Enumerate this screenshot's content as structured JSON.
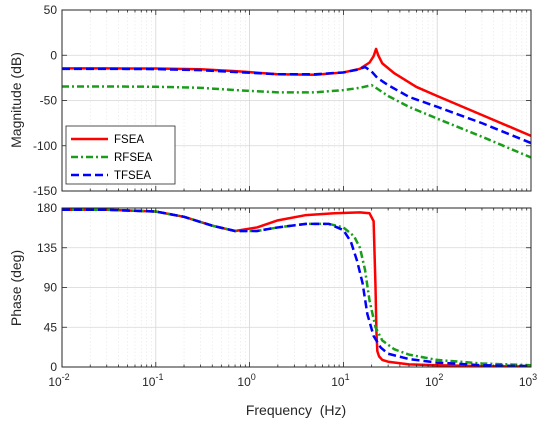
{
  "chart_data": [
    {
      "type": "line",
      "title": "",
      "xlabel": "",
      "ylabel": "Magnitude (dB)",
      "xscale": "log",
      "xlim": [
        0.01,
        1000
      ],
      "ylim": [
        -150,
        50
      ],
      "yticks": [
        -150,
        -100,
        -50,
        0,
        50
      ],
      "ytick_labels": [
        "-150",
        "-100",
        "-50",
        "0",
        "50"
      ],
      "grid": true,
      "legend": "lower-left",
      "series": [
        {
          "name": "FSEA",
          "color": "#ff0000",
          "style": "solid",
          "x": [
            0.01,
            0.03,
            0.1,
            0.3,
            0.7,
            2,
            5,
            10,
            15,
            19,
            21,
            22.3,
            23.5,
            26,
            35,
            60,
            100,
            300,
            1000
          ],
          "y": [
            -14.5,
            -14.5,
            -14.7,
            -15.5,
            -17.5,
            -21,
            -21.5,
            -19,
            -15,
            -8,
            -1,
            7,
            0,
            -9,
            -20,
            -35,
            -45,
            -66,
            -89
          ]
        },
        {
          "name": "RFSEA",
          "color": "#1a9e1a",
          "style": "dashdot",
          "x": [
            0.01,
            0.03,
            0.1,
            0.3,
            0.7,
            2,
            5,
            10,
            15,
            20,
            23,
            30,
            50,
            100,
            300,
            1000
          ],
          "y": [
            -34.5,
            -34.5,
            -34.8,
            -36,
            -38.5,
            -41,
            -41,
            -38.5,
            -36,
            -33,
            -37,
            -45,
            -57,
            -70,
            -90,
            -113
          ]
        },
        {
          "name": "TFSEA",
          "color": "#0000ff",
          "style": "dashed",
          "x": [
            0.01,
            0.03,
            0.1,
            0.3,
            0.7,
            2,
            5,
            10,
            14,
            17,
            20,
            23,
            30,
            50,
            100,
            300,
            1000
          ],
          "y": [
            -15,
            -15,
            -15.3,
            -16.5,
            -18.5,
            -21,
            -21,
            -19,
            -16,
            -13,
            -18,
            -25,
            -33,
            -46,
            -57,
            -75,
            -97
          ]
        }
      ]
    },
    {
      "type": "line",
      "title": "",
      "xlabel": "Frequency  (Hz)",
      "ylabel": "Phase (deg)",
      "xscale": "log",
      "xlim": [
        0.01,
        1000
      ],
      "ylim": [
        0,
        180
      ],
      "yticks": [
        0,
        45,
        90,
        135,
        180
      ],
      "ytick_labels": [
        "0",
        "45",
        "90",
        "135",
        "180"
      ],
      "xtick_labels": [
        "10",
        "10",
        "10",
        "10",
        "10",
        "10"
      ],
      "xtick_exponents": [
        "-2",
        "-1",
        "0",
        "1",
        "2",
        "3"
      ],
      "grid": true,
      "series": [
        {
          "name": "FSEA",
          "color": "#ff0000",
          "style": "solid",
          "x": [
            0.01,
            0.03,
            0.1,
            0.2,
            0.4,
            0.7,
            1.2,
            2,
            4,
            8,
            15,
            19,
            21,
            22,
            22.5,
            23,
            24,
            26,
            30,
            50,
            100,
            300,
            1000
          ],
          "y": [
            178,
            178,
            176,
            170,
            160,
            154,
            158,
            166,
            172,
            174,
            175,
            174,
            165,
            90,
            40,
            18,
            12,
            8,
            6,
            3,
            2,
            1,
            0.5
          ]
        },
        {
          "name": "RFSEA",
          "color": "#1a9e1a",
          "style": "dashdot",
          "x": [
            0.01,
            0.03,
            0.1,
            0.2,
            0.4,
            0.7,
            1.2,
            2,
            4,
            7,
            10,
            13,
            15,
            17,
            19,
            22,
            26,
            35,
            50,
            100,
            300,
            1000
          ],
          "y": [
            178,
            178,
            176,
            170,
            160,
            154,
            154,
            158,
            162,
            162,
            158,
            148,
            135,
            110,
            75,
            45,
            30,
            20,
            14,
            8,
            4,
            2
          ]
        },
        {
          "name": "TFSEA",
          "color": "#0000ff",
          "style": "dashed",
          "x": [
            0.01,
            0.03,
            0.1,
            0.2,
            0.4,
            0.7,
            1.2,
            2,
            4,
            7,
            10,
            12,
            14,
            16,
            18,
            21,
            25,
            30,
            50,
            100,
            300,
            1000
          ],
          "y": [
            178,
            178,
            176,
            170,
            160,
            154,
            154,
            158,
            162,
            162,
            155,
            142,
            120,
            95,
            60,
            35,
            22,
            15,
            9,
            5,
            2,
            1
          ]
        }
      ]
    }
  ]
}
